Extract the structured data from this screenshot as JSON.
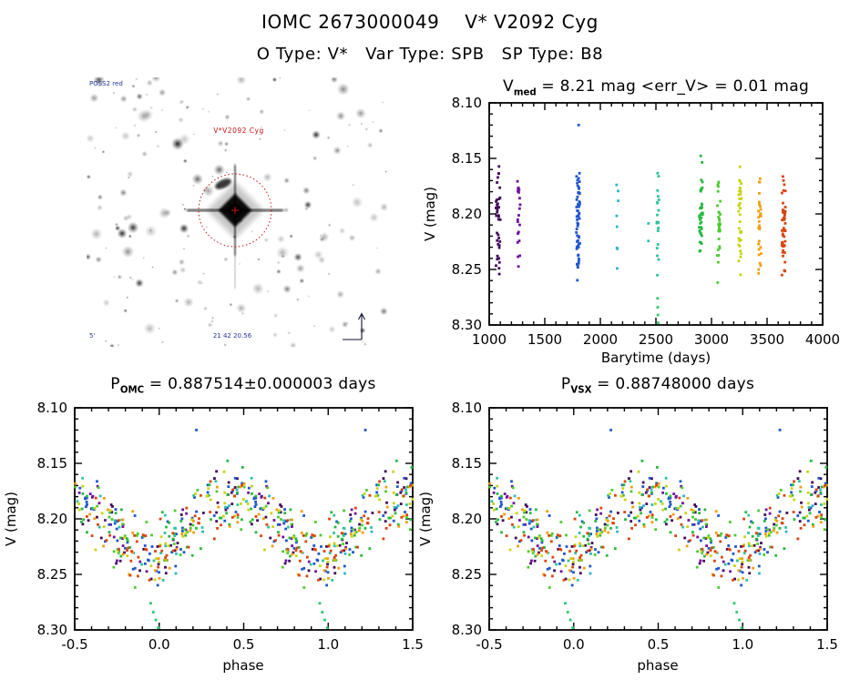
{
  "header": {
    "title": "IOMC 2673000049    V* V2092 Cyg",
    "subtitle": "O Type: V*   Var Type: SPB   SP Type: B8"
  },
  "finding_chart": {
    "survey_label": "POSS2 red",
    "target_label": "V*V2092 Cyg",
    "coord_label": "21 42 20.56",
    "scale_label": "5'",
    "circle_color": "#cc1111",
    "tiny_label_color": "#223399",
    "seed": 11,
    "n_stars": 190
  },
  "plots": {
    "timeseries": {
      "title_base": "V",
      "title_sub": "med",
      "title_rest": " = 8.21 mag <err_V> = 0.01 mag",
      "xlabel": "Barytime (days)",
      "ylabel": "V (mag)"
    },
    "phase_omc": {
      "title_base": "P",
      "title_sub": "OMC",
      "title_rest": " = 0.887514±0.000003 days",
      "xlabel": "phase",
      "ylabel": "V (mag)"
    },
    "phase_vsx": {
      "title_base": "P",
      "title_sub": "VSX",
      "title_rest": " = 0.88748000 days",
      "xlabel": "phase",
      "ylabel": "V (mag)"
    }
  },
  "chart_data": {
    "type": "scatter",
    "title": "IOMC 2673000049 V* V2092 Cyg — V-band light curve and phase-folded curves",
    "v_median_mag": 8.21,
    "err_v_mag": 0.01,
    "period_omc_days": "0.887514±0.000003",
    "period_vsx_days": 0.88748,
    "mag_axis": {
      "label": "V (mag)",
      "min": 8.1,
      "max": 8.3,
      "inverted": true,
      "major_ticks": [
        8.1,
        8.15,
        8.2,
        8.25,
        8.3
      ],
      "tick_labels": [
        "8.10",
        "8.15",
        "8.20",
        "8.25",
        "8.30"
      ],
      "minor_step": 0.01
    },
    "time_axis": {
      "label": "Barytime (days)",
      "min": 1000,
      "max": 4000,
      "major_ticks": [
        1000,
        1500,
        2000,
        2500,
        3000,
        3500,
        4000
      ],
      "tick_labels": [
        "1000",
        "1500",
        "2000",
        "2500",
        "3000",
        "3500",
        "4000"
      ],
      "minor_step": 100
    },
    "phase_axis": {
      "label": "phase",
      "min": -0.5,
      "max": 1.5,
      "major_ticks": [
        -0.5,
        0,
        0.5,
        1,
        1.5
      ],
      "tick_labels": [
        "-0.5",
        "0.0",
        "0.5",
        "1.0",
        "1.5"
      ],
      "minor_step": 0.1
    },
    "model": {
      "v_mean": 8.205,
      "v_amplitude": 0.028,
      "phase_of_max_brightness": 0.45,
      "noise_mag": 0.038,
      "v_clip_min": 8.108,
      "v_clip_max": 8.292,
      "seed": 20417
    },
    "observation_epochs": [
      {
        "barytime": 1080,
        "t_spread": 20,
        "n": 38,
        "color": "#43065c"
      },
      {
        "barytime": 1265,
        "t_spread": 14,
        "n": 20,
        "color": "#70109e"
      },
      {
        "barytime": 1800,
        "t_spread": 16,
        "n": 55,
        "color": "#1e56cc"
      },
      {
        "barytime": 2150,
        "t_spread": 12,
        "n": 8,
        "color": "#2fb6c8"
      },
      {
        "barytime": 2432,
        "t_spread": 6,
        "n": 2,
        "color": "#2fc0b4"
      },
      {
        "barytime": 2518,
        "t_spread": 10,
        "n": 20,
        "color": "#2cc49e"
      },
      {
        "barytime": 2905,
        "t_spread": 16,
        "n": 40,
        "color": "#28b93e"
      },
      {
        "barytime": 3065,
        "t_spread": 16,
        "n": 30,
        "color": "#4ecb2e"
      },
      {
        "barytime": 3255,
        "t_spread": 14,
        "n": 35,
        "color": "#c9d414"
      },
      {
        "barytime": 3435,
        "t_spread": 14,
        "n": 28,
        "color": "#f59d0c"
      },
      {
        "barytime": 3650,
        "t_spread": 16,
        "n": 48,
        "color": "#d9440e"
      }
    ],
    "outlier_points": [
      {
        "barytime": 1805,
        "phase": 0.22,
        "v": 8.12,
        "color": "#1e56cc"
      },
      {
        "barytime": 2515,
        "phase": -0.05,
        "v": 8.276,
        "color": "#2ec86e"
      },
      {
        "barytime": 2516,
        "phase": -0.035,
        "v": 8.284,
        "color": "#2ec86e"
      },
      {
        "barytime": 2518,
        "phase": -0.02,
        "v": 8.291,
        "color": "#2ec86e"
      },
      {
        "barytime": 2520,
        "phase": -0.006,
        "v": 8.298,
        "color": "#2ec86e"
      }
    ]
  }
}
